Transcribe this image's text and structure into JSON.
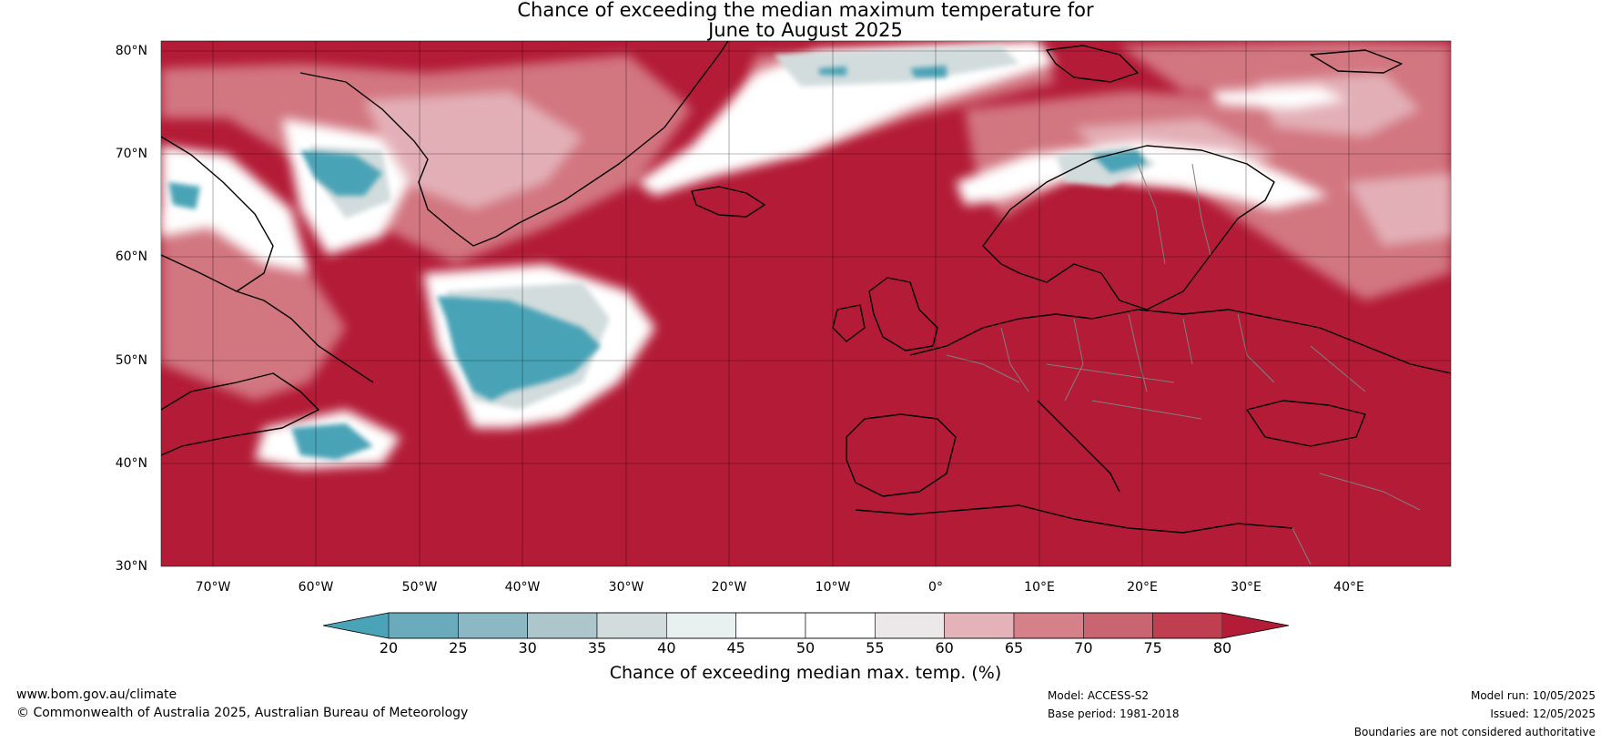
{
  "title": {
    "line1": "Chance of exceeding the median maximum temperature for",
    "line2": "June to August 2025"
  },
  "map": {
    "lat_labels": [
      "80°N",
      "70°N",
      "60°N",
      "50°N",
      "40°N",
      "30°N"
    ],
    "lon_labels": [
      "70°W",
      "60°W",
      "50°W",
      "40°W",
      "30°W",
      "20°W",
      "10°W",
      "0°",
      "10°E",
      "20°E",
      "30°E",
      "40°E"
    ],
    "dominant_color": "#b31b36",
    "cool_color": "#4aa3b6"
  },
  "colorbar": {
    "ticks": [
      "20",
      "25",
      "30",
      "35",
      "40",
      "45",
      "50",
      "55",
      "60",
      "65",
      "70",
      "75",
      "80"
    ],
    "colors": [
      "#4aa3b6",
      "#6aabbb",
      "#8cb8c4",
      "#acc6cc",
      "#d2dcdd",
      "#e9f0f0",
      "#ffffff",
      "#ffffff",
      "#ece8e9",
      "#e4b3ba",
      "#d68089",
      "#c96471",
      "#bf3e4f",
      "#b31b36"
    ],
    "label": "Chance of exceeding median max. temp. (%)"
  },
  "footer": {
    "url": "www.bom.gov.au/climate",
    "copyright": "© Commonwealth of Australia 2025, Australian Bureau of Meteorology",
    "model": "Model: ACCESS-S2",
    "base_period": "Base period: 1981-2018",
    "model_run": "Model run: 10/05/2025",
    "issued": "Issued: 12/05/2025",
    "disclaimer": "Boundaries are not considered authoritative"
  }
}
